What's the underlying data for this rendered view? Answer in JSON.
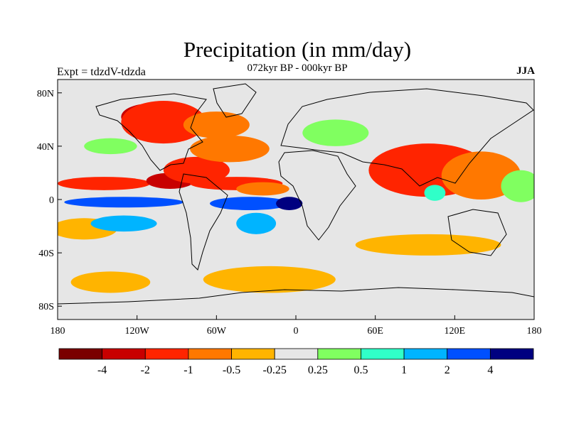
{
  "title": "Precipitation (in mm/day)",
  "subtitle": "072kyr BP - 000kyr BP",
  "left_label": "Expt = tdzdV-tdzda",
  "right_label": "JJA",
  "lat_ticks": [
    {
      "lat": 80,
      "label": "80N"
    },
    {
      "lat": 40,
      "label": "40N"
    },
    {
      "lat": 0,
      "label": "0"
    },
    {
      "lat": -40,
      "label": "40S"
    },
    {
      "lat": -80,
      "label": "80S"
    }
  ],
  "lon_ticks": [
    {
      "lon": -180,
      "label": "180"
    },
    {
      "lon": -120,
      "label": "120W"
    },
    {
      "lon": -60,
      "label": "60W"
    },
    {
      "lon": 0,
      "label": "0"
    },
    {
      "lon": 60,
      "label": "60E"
    },
    {
      "lon": 120,
      "label": "120E"
    },
    {
      "lon": 180,
      "label": "180"
    }
  ],
  "colorbar": {
    "colors": [
      "#7a0000",
      "#c80000",
      "#ff2400",
      "#ff7800",
      "#ffb400",
      "#e6e6e6",
      "#80ff60",
      "#30ffc8",
      "#00b4ff",
      "#0050ff",
      "#000080"
    ],
    "labels": [
      "-4",
      "-2",
      "-1",
      "-0.5",
      "-0.25",
      "0.25",
      "0.5",
      "1",
      "2",
      "4"
    ]
  },
  "neutral_color": "#e6e6e6",
  "map_regions": [
    {
      "c": 1,
      "lon": -110,
      "lat": 62,
      "rx": 22,
      "ry": 10
    },
    {
      "c": 2,
      "lon": -100,
      "lat": 58,
      "rx": 32,
      "ry": 16
    },
    {
      "c": 3,
      "lon": -60,
      "lat": 56,
      "rx": 25,
      "ry": 10
    },
    {
      "c": 2,
      "lon": -145,
      "lat": 12,
      "rx": 35,
      "ry": 5
    },
    {
      "c": 1,
      "lon": -95,
      "lat": 14,
      "rx": 18,
      "ry": 6
    },
    {
      "c": 2,
      "lon": -75,
      "lat": 22,
      "rx": 25,
      "ry": 10
    },
    {
      "c": 3,
      "lon": -50,
      "lat": 38,
      "rx": 30,
      "ry": 10
    },
    {
      "c": 2,
      "lon": -45,
      "lat": 12,
      "rx": 35,
      "ry": 5
    },
    {
      "c": 3,
      "lon": -25,
      "lat": 8,
      "rx": 20,
      "ry": 5
    },
    {
      "c": 2,
      "lon": 100,
      "lat": 22,
      "rx": 45,
      "ry": 20
    },
    {
      "c": 3,
      "lon": 140,
      "lat": 18,
      "rx": 30,
      "ry": 18
    },
    {
      "c": 4,
      "lon": -160,
      "lat": -22,
      "rx": 25,
      "ry": 8
    },
    {
      "c": 4,
      "lon": -20,
      "lat": -60,
      "rx": 50,
      "ry": 10
    },
    {
      "c": 4,
      "lon": 100,
      "lat": -34,
      "rx": 55,
      "ry": 8
    },
    {
      "c": 4,
      "lon": -140,
      "lat": -62,
      "rx": 30,
      "ry": 8
    },
    {
      "c": 9,
      "lon": -130,
      "lat": -2,
      "rx": 45,
      "ry": 4
    },
    {
      "c": 9,
      "lon": -35,
      "lat": -3,
      "rx": 30,
      "ry": 5
    },
    {
      "c": 10,
      "lon": -5,
      "lat": -3,
      "rx": 10,
      "ry": 5
    },
    {
      "c": 8,
      "lon": -130,
      "lat": -18,
      "rx": 25,
      "ry": 6
    },
    {
      "c": 8,
      "lon": -30,
      "lat": -18,
      "rx": 15,
      "ry": 8
    },
    {
      "c": 6,
      "lon": 30,
      "lat": 50,
      "rx": 25,
      "ry": 10
    },
    {
      "c": 6,
      "lon": -140,
      "lat": 40,
      "rx": 20,
      "ry": 6
    },
    {
      "c": 7,
      "lon": 105,
      "lat": 5,
      "rx": 8,
      "ry": 6
    },
    {
      "c": 6,
      "lon": 170,
      "lat": 10,
      "rx": 15,
      "ry": 12
    }
  ]
}
